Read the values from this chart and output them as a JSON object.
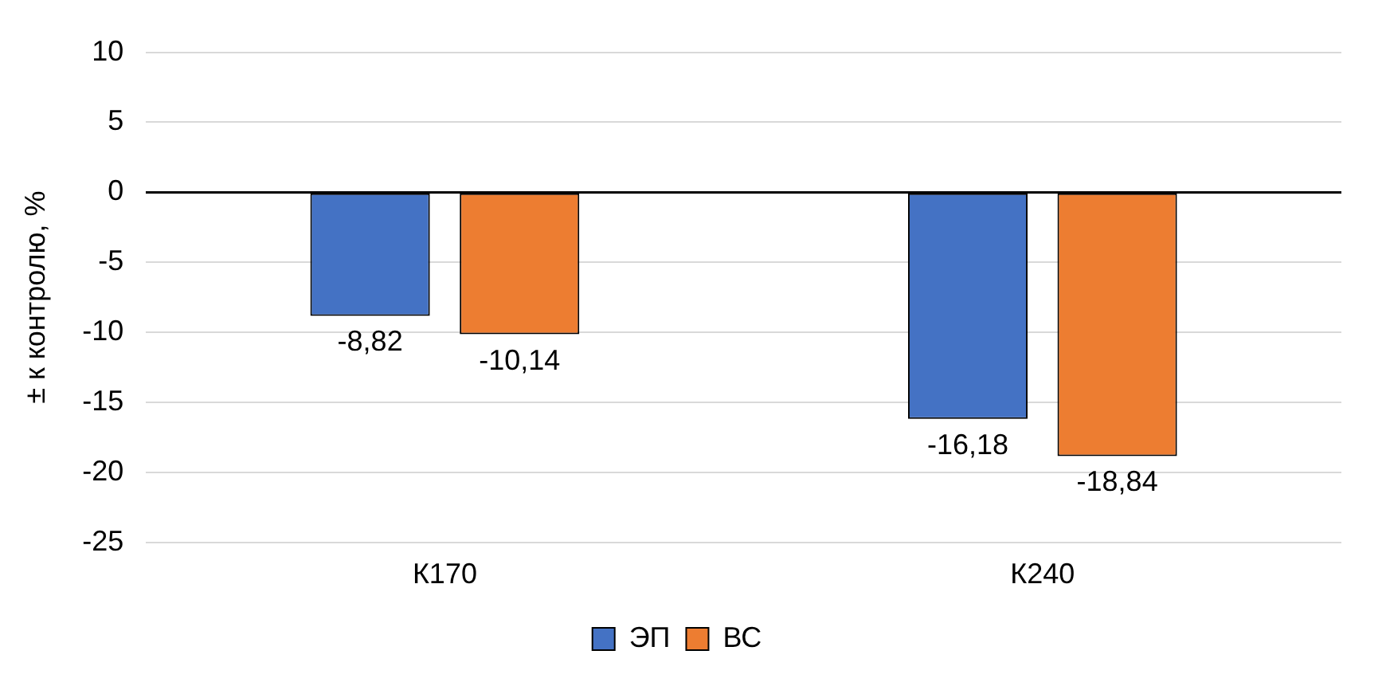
{
  "chart_data": {
    "type": "bar",
    "ylabel": "± к контролю, %",
    "categories": [
      "К170",
      "К240"
    ],
    "series": [
      {
        "name": "ЭП",
        "color": "#4472c4",
        "values": [
          -8.82,
          -16.18
        ],
        "value_labels": [
          "-8,82",
          "-16,18"
        ]
      },
      {
        "name": "ВС",
        "color": "#ed7d31",
        "values": [
          -10.14,
          -18.84
        ],
        "value_labels": [
          "-10,14",
          "-18,84"
        ]
      }
    ],
    "ylim": [
      -25,
      10
    ],
    "yticks": [
      -25,
      -20,
      -15,
      -10,
      -5,
      0,
      5,
      10
    ],
    "grid": "y",
    "legend": "bottom"
  }
}
